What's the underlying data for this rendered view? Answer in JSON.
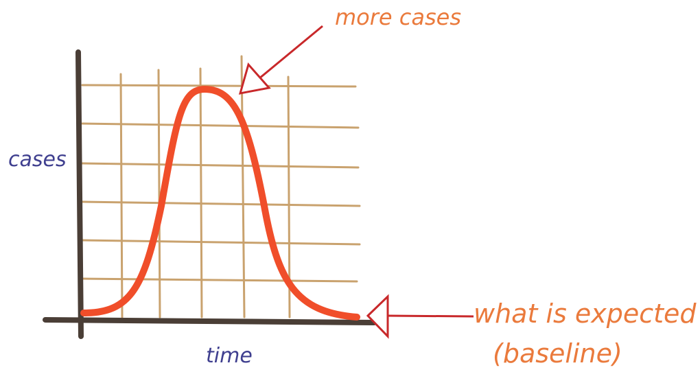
{
  "annotations": {
    "peak": "more cases",
    "y_axis": "cases",
    "x_axis": "time",
    "baseline_line1": "what is expected",
    "baseline_line2": "(baseline)"
  }
}
